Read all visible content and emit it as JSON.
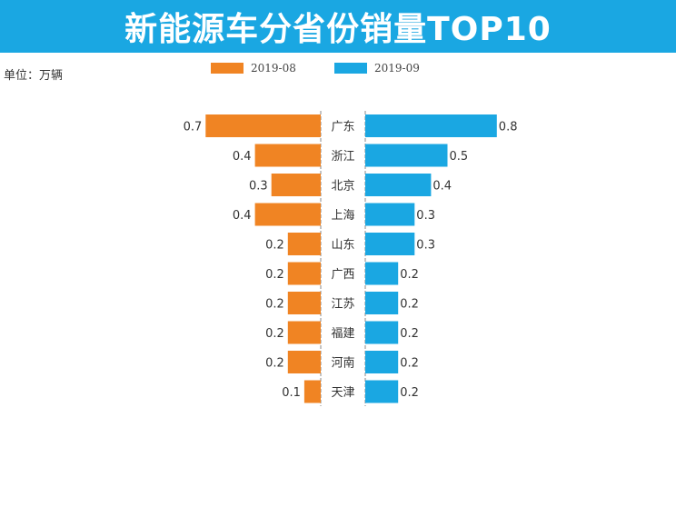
{
  "header": {
    "title": "新能源车分省份销量TOP10"
  },
  "unit_label": "单位：万辆",
  "colors": {
    "banner": "#1aa7e2",
    "left_series": "#f08423",
    "right_series": "#1aa7e2",
    "axis": "#888888"
  },
  "chart_data": {
    "type": "bar",
    "orientation": "horizontal-butterfly",
    "categories": [
      "广东",
      "浙江",
      "北京",
      "上海",
      "山东",
      "广西",
      "江苏",
      "福建",
      "河南",
      "天津"
    ],
    "series": [
      {
        "name": "2019-08",
        "values": [
          0.7,
          0.4,
          0.3,
          0.4,
          0.2,
          0.2,
          0.2,
          0.2,
          0.2,
          0.1
        ],
        "labels": [
          "0.7",
          "0.4",
          "0.3",
          "0.4",
          "0.2",
          "0.2",
          "0.2",
          "0.2",
          "0.2",
          "0.1"
        ],
        "side": "left"
      },
      {
        "name": "2019-09",
        "values": [
          0.8,
          0.5,
          0.4,
          0.3,
          0.3,
          0.2,
          0.2,
          0.2,
          0.2,
          0.2
        ],
        "labels": [
          "0.8",
          "0.5",
          "0.4",
          "0.3",
          "0.3",
          "0.2",
          "0.2",
          "0.2",
          "0.2",
          "0.2"
        ],
        "side": "right"
      }
    ],
    "xlim": [
      0,
      0.8
    ],
    "grid": false,
    "legend_placement": "top-center"
  }
}
